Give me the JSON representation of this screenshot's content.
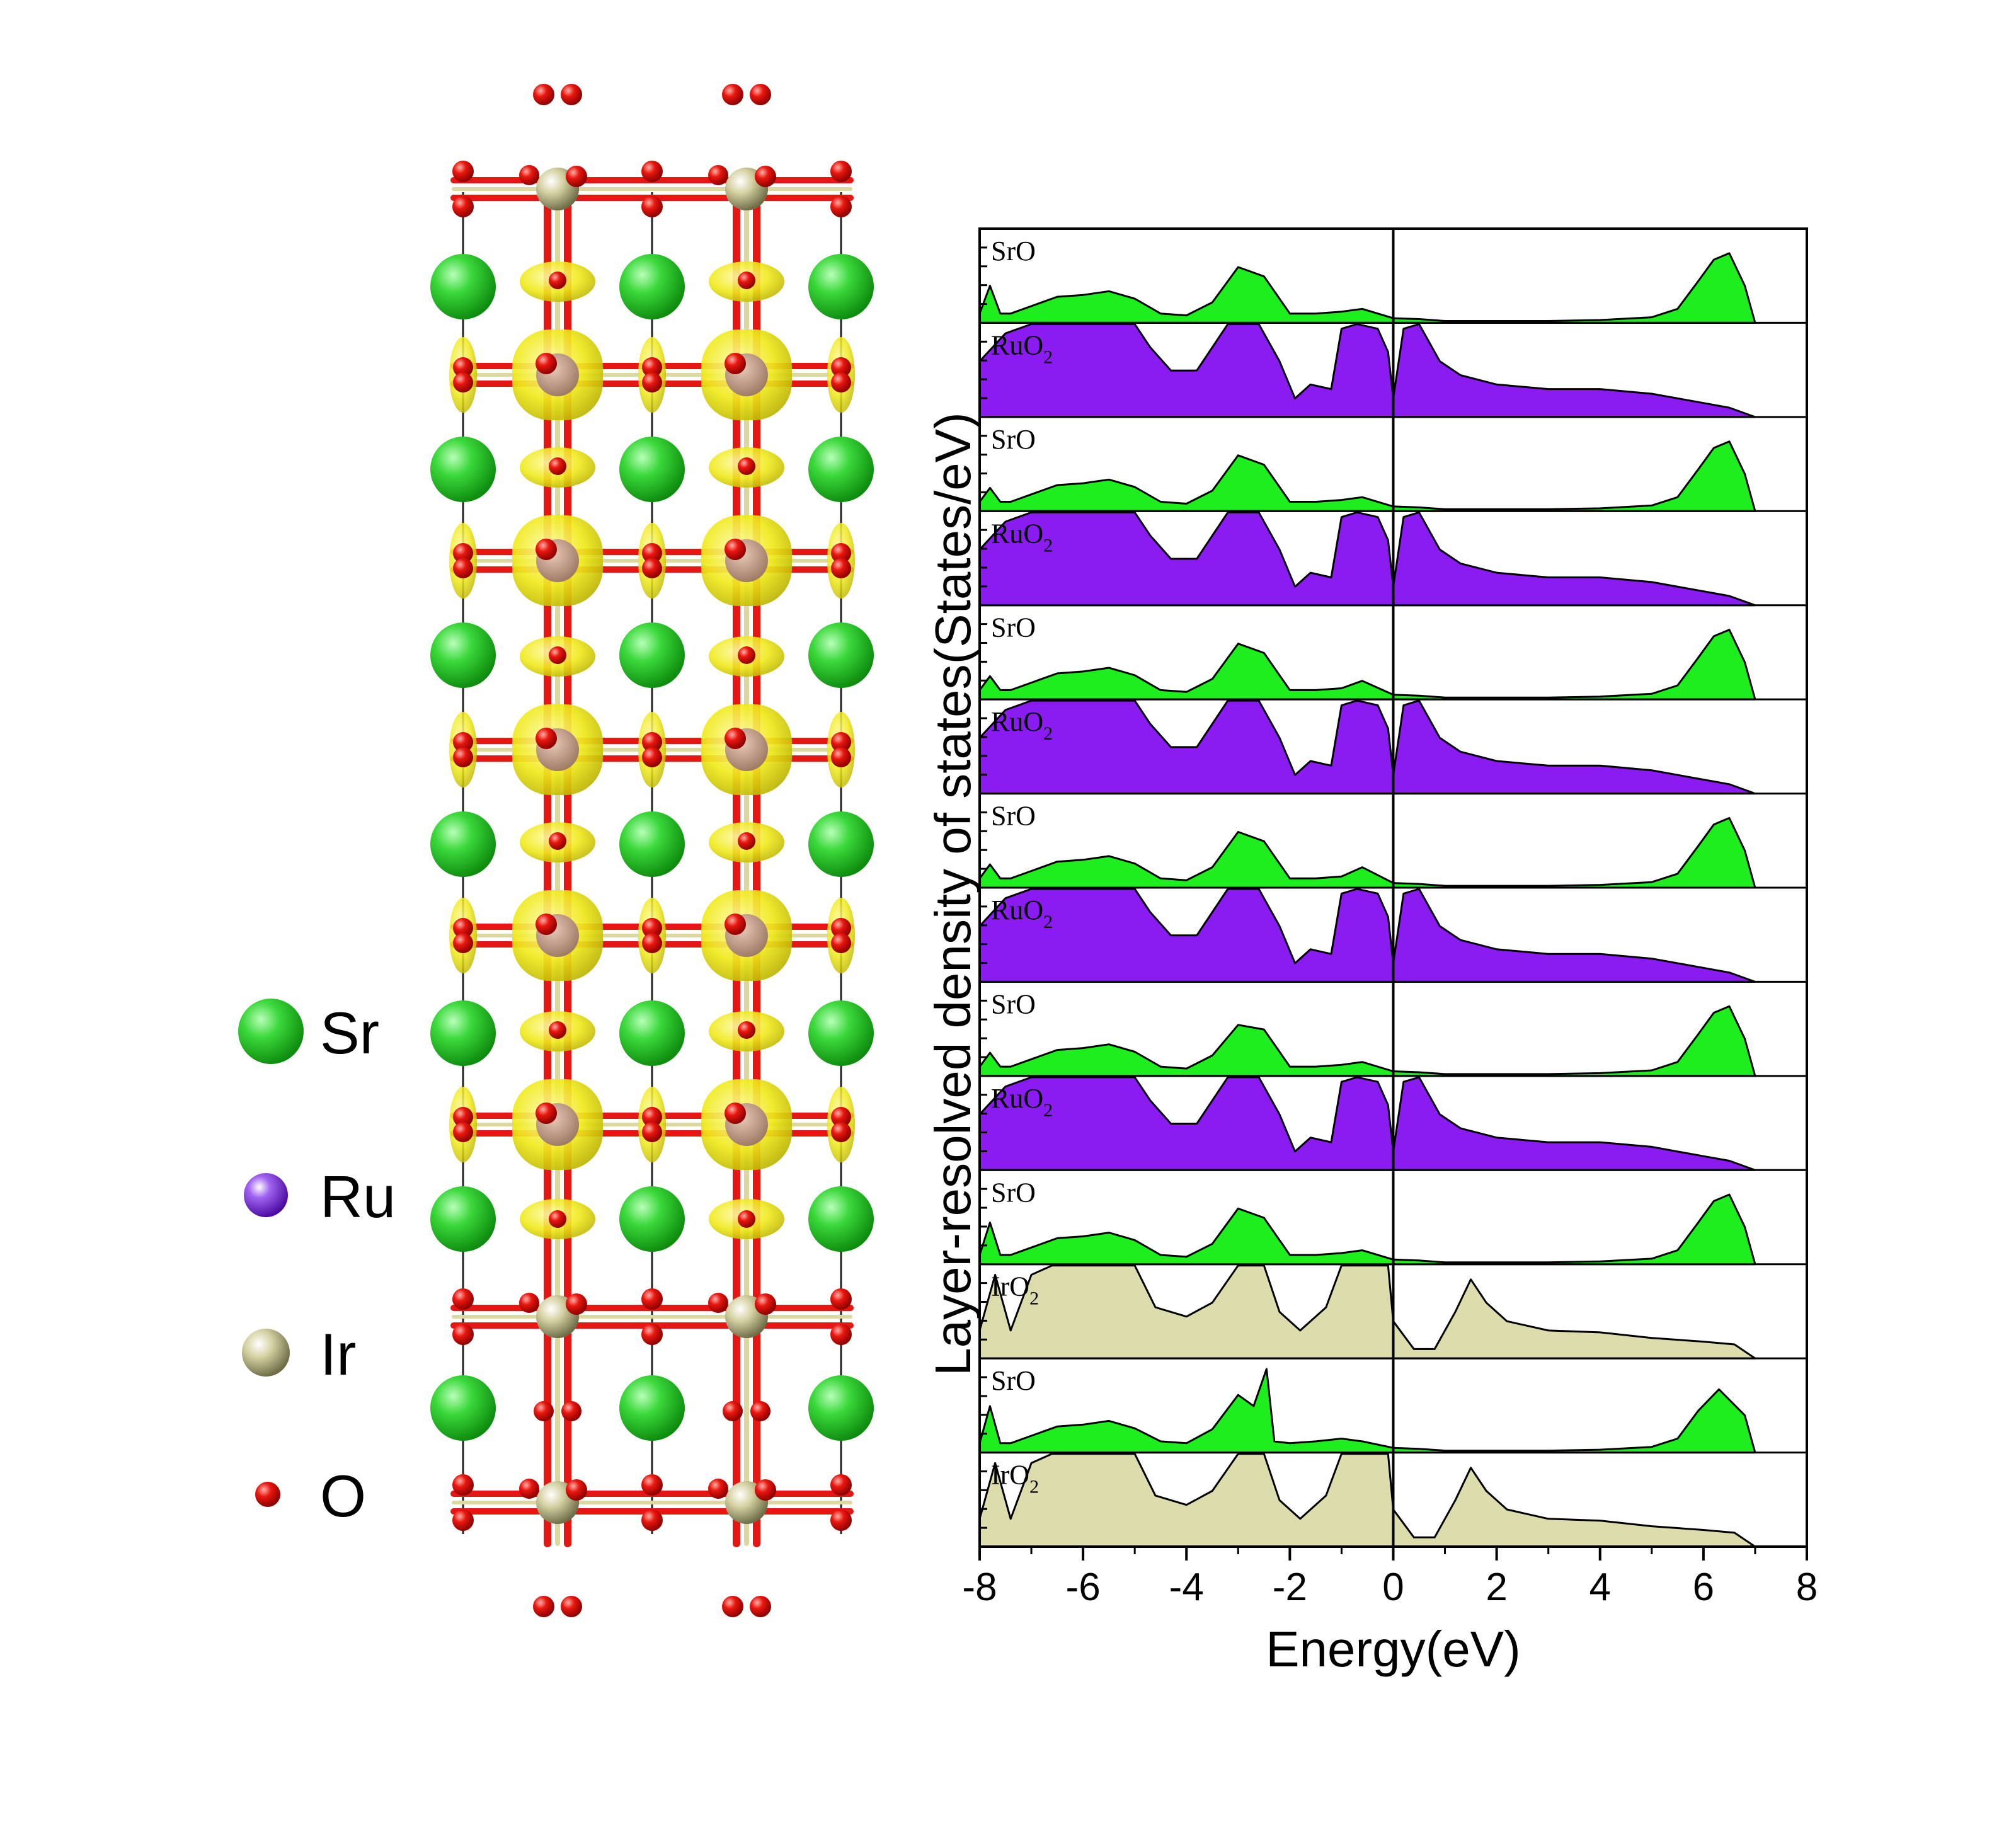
{
  "legend": {
    "items": [
      {
        "label": "Sr",
        "color": "#2ec82e"
      },
      {
        "label": "Ru",
        "color": "#7b1fd8"
      },
      {
        "label": "Ir",
        "color": "#c9c79a"
      },
      {
        "label": "O",
        "color": "#e0140f"
      }
    ]
  },
  "structure": {
    "atom_colors": {
      "Sr": "#23c523",
      "Ru": "#7b1fd8",
      "Ir": "#d6d3a4",
      "O": "#e61612",
      "isosurface": "#f2ee1a",
      "bond_ir": "#dcd8a0",
      "bond_o": "#e61612"
    }
  },
  "chart_data": {
    "type": "area",
    "title": "",
    "xlabel": "Energy(eV)",
    "ylabel": "Layer-resolved density of states(States/eV)",
    "xlim": [
      -8,
      8
    ],
    "xticks": [
      -8,
      -6,
      -4,
      -2,
      0,
      2,
      4,
      6,
      8
    ],
    "fermi_level": 0,
    "panels": [
      {
        "name": "SrO",
        "main": "SrO",
        "sub": "",
        "kind": "SrO",
        "color": "#1eee1e",
        "x": [
          -8,
          -7.8,
          -7.6,
          -7.4,
          -7,
          -6.5,
          -6,
          -5.5,
          -5,
          -4.5,
          -4,
          -3.5,
          -3,
          -2.5,
          -2,
          -1.5,
          -1,
          -0.6,
          0,
          0.5,
          1,
          2,
          3,
          4,
          5,
          5.5,
          5.9,
          6.2,
          6.5,
          6.8,
          7
        ],
        "y": [
          0.1,
          0.4,
          0.1,
          0.1,
          0.18,
          0.28,
          0.3,
          0.34,
          0.26,
          0.1,
          0.08,
          0.22,
          0.6,
          0.5,
          0.1,
          0.1,
          0.12,
          0.15,
          0.05,
          0.04,
          0.02,
          0.02,
          0.02,
          0.03,
          0.06,
          0.15,
          0.45,
          0.68,
          0.75,
          0.4,
          0
        ]
      },
      {
        "name": "RuO2",
        "main": "RuO",
        "sub": "2",
        "kind": "RuO2",
        "color": "#8a1cf2",
        "x": [
          -8,
          -7.5,
          -7,
          -6.5,
          -5.5,
          -5,
          -4.7,
          -4.3,
          -3.8,
          -3.2,
          -2.6,
          -2.2,
          -1.9,
          -1.6,
          -1.2,
          -1,
          -0.7,
          -0.3,
          -0.1,
          0,
          0.2,
          0.5,
          0.9,
          1.3,
          2,
          3,
          4,
          5,
          6,
          6.5,
          7
        ],
        "y": [
          0.6,
          0.9,
          1.0,
          1.0,
          1.0,
          1.0,
          0.75,
          0.5,
          0.5,
          1.0,
          1.0,
          0.6,
          0.2,
          0.35,
          0.3,
          0.95,
          1.0,
          0.95,
          0.7,
          0.2,
          0.95,
          1.0,
          0.6,
          0.45,
          0.35,
          0.3,
          0.3,
          0.25,
          0.15,
          0.1,
          0
        ]
      },
      {
        "name": "SrO",
        "main": "SrO",
        "sub": "",
        "kind": "SrO",
        "color": "#1eee1e",
        "x": [
          -8,
          -7.8,
          -7.6,
          -7.4,
          -7,
          -6.5,
          -6,
          -5.5,
          -5,
          -4.5,
          -4,
          -3.5,
          -3,
          -2.5,
          -2,
          -1.5,
          -1,
          -0.6,
          0,
          0.5,
          1,
          2,
          3,
          4,
          5,
          5.5,
          5.9,
          6.2,
          6.5,
          6.8,
          7
        ],
        "y": [
          0.1,
          0.25,
          0.1,
          0.1,
          0.18,
          0.28,
          0.3,
          0.34,
          0.26,
          0.1,
          0.08,
          0.22,
          0.6,
          0.5,
          0.1,
          0.1,
          0.12,
          0.15,
          0.05,
          0.04,
          0.02,
          0.02,
          0.02,
          0.03,
          0.06,
          0.15,
          0.45,
          0.68,
          0.75,
          0.4,
          0
        ]
      },
      {
        "name": "RuO2",
        "main": "RuO",
        "sub": "2",
        "kind": "RuO2",
        "color": "#8a1cf2",
        "x": [
          -8,
          -7.5,
          -7,
          -6.5,
          -5.5,
          -5,
          -4.7,
          -4.3,
          -3.8,
          -3.2,
          -2.6,
          -2.2,
          -1.9,
          -1.6,
          -1.2,
          -1,
          -0.7,
          -0.3,
          -0.1,
          0,
          0.2,
          0.5,
          0.9,
          1.3,
          2,
          3,
          4,
          5,
          6,
          6.5,
          7
        ],
        "y": [
          0.6,
          0.9,
          1.0,
          1.0,
          1.0,
          1.0,
          0.75,
          0.5,
          0.5,
          1.0,
          1.0,
          0.6,
          0.2,
          0.35,
          0.3,
          0.95,
          1.0,
          0.95,
          0.7,
          0.2,
          0.95,
          1.0,
          0.6,
          0.45,
          0.35,
          0.3,
          0.3,
          0.25,
          0.15,
          0.1,
          0
        ]
      },
      {
        "name": "SrO",
        "main": "SrO",
        "sub": "",
        "kind": "SrO",
        "color": "#1eee1e",
        "x": [
          -8,
          -7.8,
          -7.6,
          -7.4,
          -7,
          -6.5,
          -6,
          -5.5,
          -5,
          -4.5,
          -4,
          -3.5,
          -3,
          -2.5,
          -2,
          -1.5,
          -1,
          -0.6,
          0,
          0.5,
          1,
          2,
          3,
          4,
          5,
          5.5,
          5.9,
          6.2,
          6.5,
          6.8,
          7
        ],
        "y": [
          0.1,
          0.25,
          0.1,
          0.1,
          0.18,
          0.28,
          0.3,
          0.34,
          0.26,
          0.1,
          0.08,
          0.22,
          0.6,
          0.5,
          0.1,
          0.1,
          0.12,
          0.2,
          0.05,
          0.04,
          0.02,
          0.02,
          0.02,
          0.03,
          0.06,
          0.15,
          0.45,
          0.68,
          0.75,
          0.4,
          0
        ]
      },
      {
        "name": "RuO2",
        "main": "RuO",
        "sub": "2",
        "kind": "RuO2",
        "color": "#8a1cf2",
        "x": [
          -8,
          -7.5,
          -7,
          -6.5,
          -5.5,
          -5,
          -4.7,
          -4.3,
          -3.8,
          -3.2,
          -2.6,
          -2.2,
          -1.9,
          -1.6,
          -1.2,
          -1,
          -0.7,
          -0.3,
          -0.1,
          0,
          0.2,
          0.5,
          0.9,
          1.3,
          2,
          3,
          4,
          5,
          6,
          6.5,
          7
        ],
        "y": [
          0.6,
          0.9,
          1.0,
          1.0,
          1.0,
          1.0,
          0.75,
          0.5,
          0.5,
          1.0,
          1.0,
          0.6,
          0.2,
          0.35,
          0.3,
          0.95,
          1.0,
          0.95,
          0.7,
          0.2,
          0.95,
          1.0,
          0.6,
          0.45,
          0.35,
          0.3,
          0.3,
          0.25,
          0.15,
          0.1,
          0
        ]
      },
      {
        "name": "SrO",
        "main": "SrO",
        "sub": "",
        "kind": "SrO",
        "color": "#1eee1e",
        "x": [
          -8,
          -7.8,
          -7.6,
          -7.4,
          -7,
          -6.5,
          -6,
          -5.5,
          -5,
          -4.5,
          -4,
          -3.5,
          -3,
          -2.5,
          -2,
          -1.5,
          -1,
          -0.6,
          0,
          0.5,
          1,
          2,
          3,
          4,
          5,
          5.5,
          5.9,
          6.2,
          6.5,
          6.8,
          7
        ],
        "y": [
          0.1,
          0.25,
          0.1,
          0.1,
          0.18,
          0.28,
          0.3,
          0.34,
          0.26,
          0.1,
          0.08,
          0.22,
          0.6,
          0.5,
          0.1,
          0.1,
          0.12,
          0.22,
          0.05,
          0.04,
          0.02,
          0.02,
          0.02,
          0.03,
          0.06,
          0.15,
          0.45,
          0.68,
          0.75,
          0.4,
          0
        ]
      },
      {
        "name": "RuO2",
        "main": "RuO",
        "sub": "2",
        "kind": "RuO2",
        "color": "#8a1cf2",
        "x": [
          -8,
          -7.5,
          -7,
          -6.5,
          -5.5,
          -5,
          -4.7,
          -4.3,
          -3.8,
          -3.2,
          -2.6,
          -2.2,
          -1.9,
          -1.6,
          -1.2,
          -1,
          -0.7,
          -0.3,
          -0.1,
          0,
          0.2,
          0.5,
          0.9,
          1.3,
          2,
          3,
          4,
          5,
          6,
          6.5,
          7
        ],
        "y": [
          0.6,
          0.9,
          1.0,
          1.0,
          1.0,
          1.0,
          0.75,
          0.5,
          0.5,
          1.0,
          1.0,
          0.6,
          0.2,
          0.35,
          0.3,
          0.95,
          1.0,
          0.95,
          0.7,
          0.2,
          0.95,
          1.0,
          0.6,
          0.45,
          0.35,
          0.3,
          0.3,
          0.25,
          0.15,
          0.1,
          0
        ]
      },
      {
        "name": "SrO",
        "main": "SrO",
        "sub": "",
        "kind": "SrO",
        "color": "#1eee1e",
        "x": [
          -8,
          -7.8,
          -7.6,
          -7.4,
          -7,
          -6.5,
          -6,
          -5.5,
          -5,
          -4.5,
          -4,
          -3.5,
          -3,
          -2.5,
          -2,
          -1.5,
          -1,
          -0.6,
          0,
          0.5,
          1,
          2,
          3,
          4,
          5,
          5.5,
          5.9,
          6.2,
          6.5,
          6.8,
          7
        ],
        "y": [
          0.1,
          0.25,
          0.1,
          0.1,
          0.18,
          0.28,
          0.3,
          0.34,
          0.26,
          0.1,
          0.08,
          0.22,
          0.55,
          0.5,
          0.1,
          0.1,
          0.12,
          0.15,
          0.05,
          0.04,
          0.02,
          0.02,
          0.02,
          0.03,
          0.06,
          0.15,
          0.45,
          0.68,
          0.75,
          0.4,
          0
        ]
      },
      {
        "name": "RuO2",
        "main": "RuO",
        "sub": "2",
        "kind": "RuO2",
        "color": "#8a1cf2",
        "x": [
          -8,
          -7.5,
          -7,
          -6.5,
          -5.5,
          -5,
          -4.7,
          -4.3,
          -3.8,
          -3.2,
          -2.6,
          -2.2,
          -1.9,
          -1.6,
          -1.2,
          -1,
          -0.7,
          -0.3,
          -0.1,
          0,
          0.2,
          0.5,
          0.9,
          1.3,
          2,
          3,
          4,
          5,
          6,
          6.5,
          7
        ],
        "y": [
          0.6,
          0.9,
          1.0,
          1.0,
          1.0,
          1.0,
          0.75,
          0.5,
          0.5,
          1.0,
          1.0,
          0.6,
          0.2,
          0.35,
          0.3,
          0.95,
          1.0,
          0.95,
          0.7,
          0.2,
          0.95,
          1.0,
          0.6,
          0.45,
          0.35,
          0.3,
          0.3,
          0.25,
          0.15,
          0.1,
          0
        ]
      },
      {
        "name": "SrO",
        "main": "SrO",
        "sub": "",
        "kind": "SrO",
        "color": "#1eee1e",
        "x": [
          -8,
          -7.8,
          -7.6,
          -7.4,
          -7,
          -6.5,
          -6,
          -5.5,
          -5,
          -4.5,
          -4,
          -3.5,
          -3,
          -2.5,
          -2,
          -1.5,
          -1,
          -0.6,
          0,
          0.5,
          1,
          2,
          3,
          4,
          5,
          5.5,
          5.9,
          6.2,
          6.5,
          6.8,
          7
        ],
        "y": [
          0.1,
          0.45,
          0.1,
          0.1,
          0.18,
          0.28,
          0.3,
          0.34,
          0.26,
          0.1,
          0.08,
          0.22,
          0.6,
          0.5,
          0.1,
          0.1,
          0.12,
          0.15,
          0.05,
          0.04,
          0.02,
          0.02,
          0.02,
          0.03,
          0.06,
          0.15,
          0.45,
          0.68,
          0.75,
          0.4,
          0
        ]
      },
      {
        "name": "IrO2",
        "main": "IrO",
        "sub": "2",
        "kind": "IrO2",
        "color": "#dcdcad",
        "x": [
          -8,
          -7.7,
          -7.4,
          -7,
          -6.6,
          -5.5,
          -5,
          -4.6,
          -4,
          -3.5,
          -3,
          -2.5,
          -2.2,
          -1.8,
          -1.3,
          -1,
          -0.5,
          -0.1,
          0,
          0.4,
          0.8,
          1.2,
          1.5,
          1.8,
          2.2,
          3,
          4,
          5,
          6,
          6.6,
          7
        ],
        "y": [
          0.3,
          0.9,
          0.3,
          0.9,
          1.0,
          1.0,
          1.0,
          0.55,
          0.45,
          0.6,
          1.0,
          1.0,
          0.5,
          0.3,
          0.55,
          1.0,
          1.0,
          1.0,
          0.4,
          0.1,
          0.1,
          0.5,
          0.85,
          0.6,
          0.4,
          0.3,
          0.28,
          0.22,
          0.18,
          0.15,
          0
        ]
      },
      {
        "name": "SrO",
        "main": "SrO",
        "sub": "",
        "kind": "SrO",
        "color": "#1eee1e",
        "x": [
          -8,
          -7.8,
          -7.6,
          -7.4,
          -7,
          -6.5,
          -6,
          -5.5,
          -5,
          -4.5,
          -4,
          -3.5,
          -3,
          -2.7,
          -2.45,
          -2.3,
          -2,
          -1.5,
          -1,
          -0.6,
          0,
          0.5,
          1,
          2,
          3,
          4,
          5,
          5.5,
          5.9,
          6.3,
          6.8,
          7
        ],
        "y": [
          0.1,
          0.5,
          0.1,
          0.1,
          0.18,
          0.28,
          0.3,
          0.34,
          0.26,
          0.12,
          0.1,
          0.25,
          0.62,
          0.5,
          0.9,
          0.12,
          0.1,
          0.12,
          0.15,
          0.12,
          0.05,
          0.04,
          0.02,
          0.02,
          0.02,
          0.03,
          0.06,
          0.15,
          0.45,
          0.68,
          0.4,
          0
        ]
      },
      {
        "name": "IrO2",
        "main": "IrO",
        "sub": "2",
        "kind": "IrO2",
        "color": "#dcdcad",
        "x": [
          -8,
          -7.7,
          -7.4,
          -7,
          -6.6,
          -5.5,
          -5,
          -4.6,
          -4,
          -3.5,
          -3,
          -2.5,
          -2.2,
          -1.8,
          -1.3,
          -1,
          -0.5,
          -0.1,
          0,
          0.4,
          0.8,
          1.2,
          1.5,
          1.8,
          2.2,
          3,
          4,
          5,
          6,
          6.6,
          7
        ],
        "y": [
          0.3,
          0.9,
          0.3,
          0.9,
          1.0,
          1.0,
          1.0,
          0.55,
          0.45,
          0.6,
          1.0,
          1.0,
          0.5,
          0.3,
          0.55,
          1.0,
          1.0,
          1.0,
          0.4,
          0.1,
          0.1,
          0.5,
          0.85,
          0.6,
          0.4,
          0.3,
          0.28,
          0.22,
          0.18,
          0.15,
          0
        ]
      }
    ]
  }
}
